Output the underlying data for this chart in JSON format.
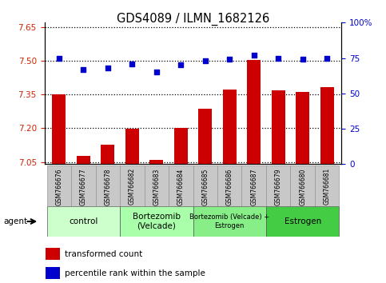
{
  "title": "GDS4089 / ILMN_1682126",
  "samples": [
    "GSM766676",
    "GSM766677",
    "GSM766678",
    "GSM766682",
    "GSM766683",
    "GSM766684",
    "GSM766685",
    "GSM766686",
    "GSM766687",
    "GSM766679",
    "GSM766680",
    "GSM766681"
  ],
  "bar_values": [
    7.352,
    7.078,
    7.125,
    7.198,
    7.06,
    7.202,
    7.285,
    7.372,
    7.505,
    7.368,
    7.36,
    7.382
  ],
  "dot_values": [
    75,
    67,
    68,
    71,
    65,
    70,
    73,
    74,
    77,
    75,
    74,
    75
  ],
  "bar_color": "#CC0000",
  "dot_color": "#0000CC",
  "ylim_left": [
    7.04,
    7.67
  ],
  "ylim_right": [
    0,
    100
  ],
  "yticks_left": [
    7.05,
    7.2,
    7.35,
    7.5,
    7.65
  ],
  "yticks_right": [
    0,
    25,
    50,
    75,
    100
  ],
  "ytick_labels_right": [
    "0",
    "25",
    "50",
    "75",
    "100%"
  ],
  "groups": [
    {
      "label": "control",
      "start": 0,
      "end": 3,
      "color": "#CCFFCC"
    },
    {
      "label": "Bortezomib\n(Velcade)",
      "start": 3,
      "end": 6,
      "color": "#AAFFAA"
    },
    {
      "label": "Bortezomib (Velcade) +\nEstrogen",
      "start": 6,
      "end": 9,
      "color": "#88EE88"
    },
    {
      "label": "Estrogen",
      "start": 9,
      "end": 12,
      "color": "#44CC44"
    }
  ],
  "legend_bar_label": "transformed count",
  "legend_dot_label": "percentile rank within the sample",
  "agent_label": "agent",
  "grid_color": "#000000",
  "tick_bg_color": "#C8C8C8",
  "left_axis_color": "#CC2200",
  "right_axis_color": "#0000CC"
}
